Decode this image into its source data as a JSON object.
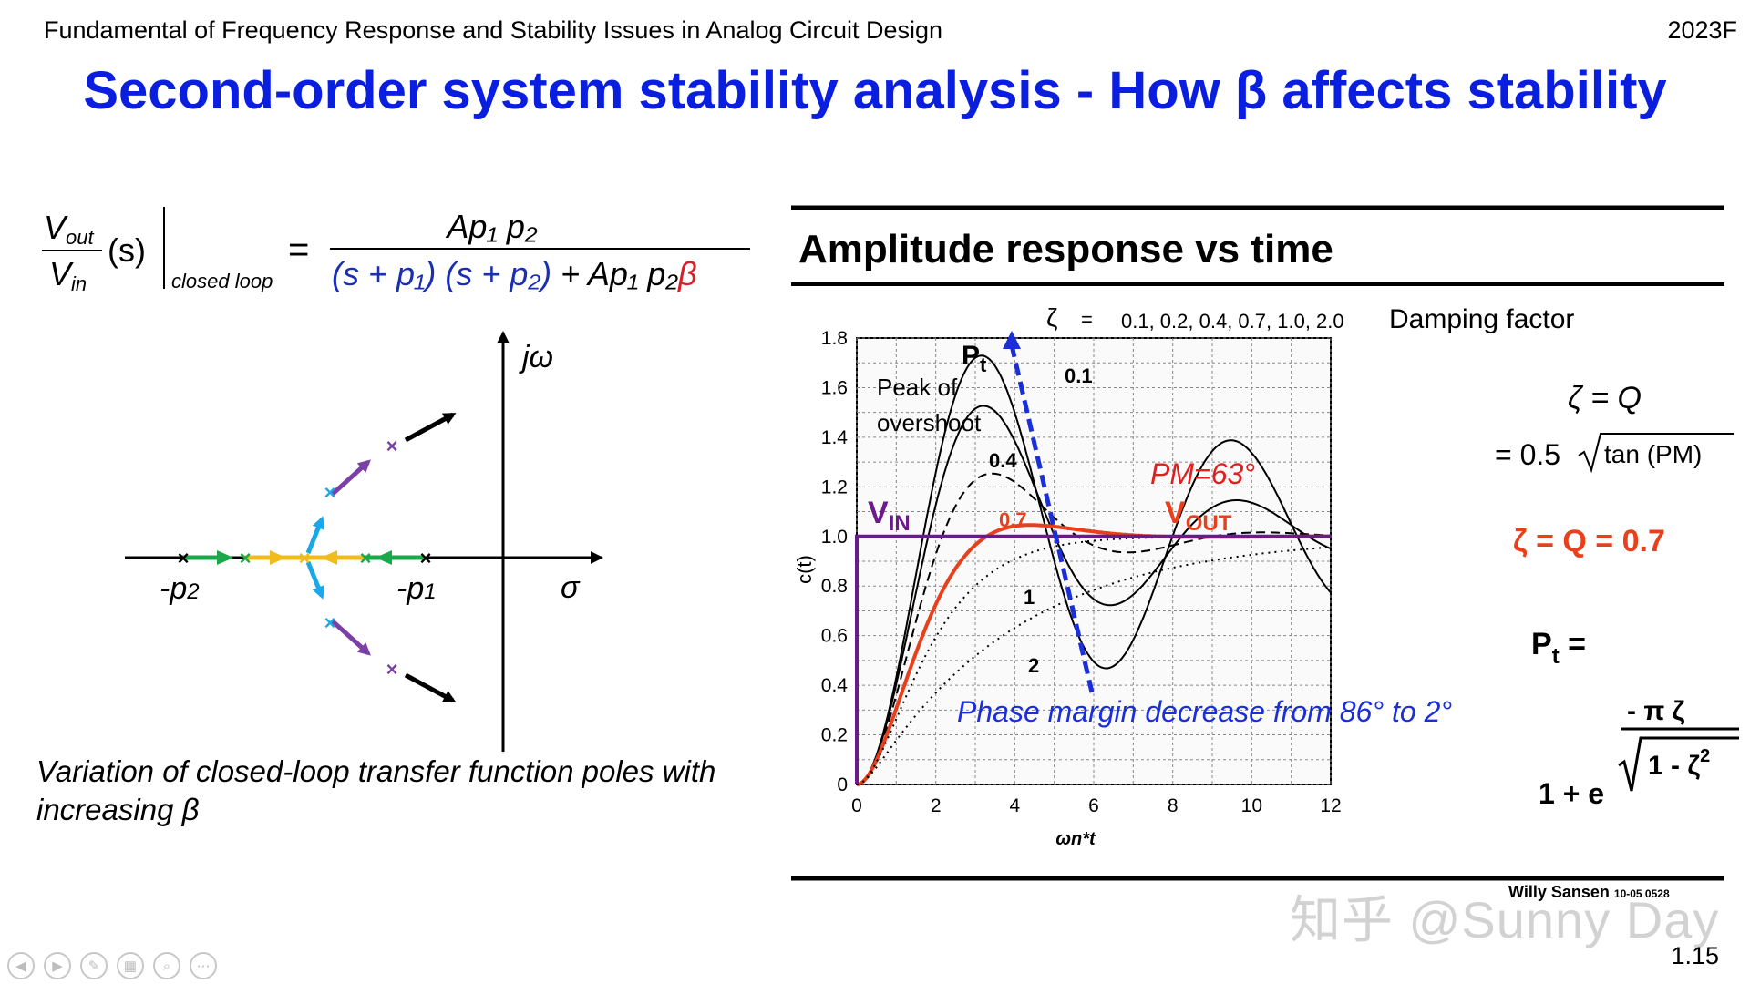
{
  "header": {
    "course_title": "Fundamental of Frequency Response and Stability Issues in Analog Circuit Design",
    "year": "2023F"
  },
  "slide_title": "Second-order system stability analysis - How β affects stability",
  "formula": {
    "lhs_num": "V",
    "lhs_num_sub": "out",
    "lhs_den": "V",
    "lhs_den_sub": "in",
    "lhs_arg": "(s)",
    "lhs_cond": "closed loop",
    "eq": "=",
    "rhs_num": "Ap₁ p₂",
    "rhs_den_blue": "(s + p₁) (s + p₂)",
    "rhs_den_black": " + Ap₁ p₂",
    "rhs_den_red": "β"
  },
  "root_locus": {
    "axis_im": "jω",
    "axis_re": "σ",
    "pole2": "-p",
    "pole2_sub": "2",
    "pole1": "-p",
    "pole1_sub": "1",
    "pole_marker": "×",
    "colors": {
      "green": "#1aa84a",
      "yellow": "#f2bb1c",
      "cyan": "#1aa9e8",
      "purple": "#7b3fa8",
      "black": "#000000"
    }
  },
  "caption": "Variation of closed-loop transfer function poles with increasing β",
  "figure": {
    "title": "Amplitude response vs time",
    "zeta_label": "ζ",
    "zeta_eq": "=",
    "zeta_values": "0.1, 0.2, 0.4, 0.7, 1.0, 2.0",
    "damping_label": "Damping factor",
    "ylabel": "c(t)",
    "xlabel": "ωn*t",
    "pt_label": "P",
    "pt_sub": "t",
    "peak_line1": "Peak of",
    "peak_line2": "overshoot",
    "curve_labels": [
      "0.1",
      "0.4",
      "0.7",
      "1",
      "2"
    ],
    "pm_label": "PM=63°",
    "vin": "V",
    "vin_sub": "IN",
    "vout": "V",
    "vout_sub": "OUT",
    "phase_note": "Phase margin decrease from 86°  to 2°",
    "credit": "Willy Sansen",
    "credit_code": "10-05 0528"
  },
  "chart_data": {
    "type": "line",
    "xlabel": "ωn*t",
    "ylabel": "c(t)",
    "xlim": [
      0,
      12
    ],
    "ylim": [
      0,
      1.8
    ],
    "x_ticks": [
      0,
      2,
      4,
      6,
      8,
      10,
      12
    ],
    "y_ticks": [
      0,
      0.2,
      0.4,
      0.6,
      0.8,
      1.0,
      1.2,
      1.4,
      1.6,
      1.8
    ],
    "x_tick_labels": [
      "0",
      "2",
      "4",
      "6",
      "8",
      "10",
      "12"
    ],
    "y_tick_labels": [
      "0",
      "0.2",
      "0.4",
      "0.6",
      "0.8",
      "1.0",
      "1.2",
      "1.4",
      "1.6",
      "1.8"
    ],
    "grid": true,
    "series": [
      {
        "name": "0.1",
        "zeta": 0.1,
        "style": "solid",
        "color": "#000000"
      },
      {
        "name": "0.2",
        "zeta": 0.2,
        "style": "solid",
        "color": "#000000"
      },
      {
        "name": "0.4",
        "zeta": 0.4,
        "style": "dashed",
        "color": "#000000"
      },
      {
        "name": "0.7",
        "zeta": 0.7,
        "style": "solid",
        "color": "#e8401c"
      },
      {
        "name": "1",
        "zeta": 1.0,
        "style": "dotted",
        "color": "#000000"
      },
      {
        "name": "2",
        "zeta": 2.0,
        "style": "dotted",
        "color": "#000000"
      },
      {
        "name": "V_IN",
        "style": "step",
        "color": "#6a1a8a"
      }
    ]
  },
  "side_formulas": {
    "f1": "ζ = Q",
    "f2_prefix": "= 0.5",
    "f2_rad": "tan (PM)",
    "f3": "ζ = Q = 0.7",
    "f4_left": "P",
    "f4_sub": "t",
    "f4_eq": " =",
    "f5_num": "- π ζ",
    "f5_base": "1 + e",
    "f5_rad": "1 - ζ",
    "f5_sup": "2",
    "f3_color": "#e8401c"
  },
  "footer": {
    "watermark": "知乎 @Sunny Day",
    "slide_number": "1.15",
    "nav_icons": [
      "prev-icon",
      "next-icon",
      "pen-icon",
      "slides-icon",
      "zoom-icon",
      "more-icon"
    ],
    "nav_glyphs": [
      "◀",
      "▶",
      "✎",
      "▦",
      "⌕",
      "⋯"
    ]
  }
}
